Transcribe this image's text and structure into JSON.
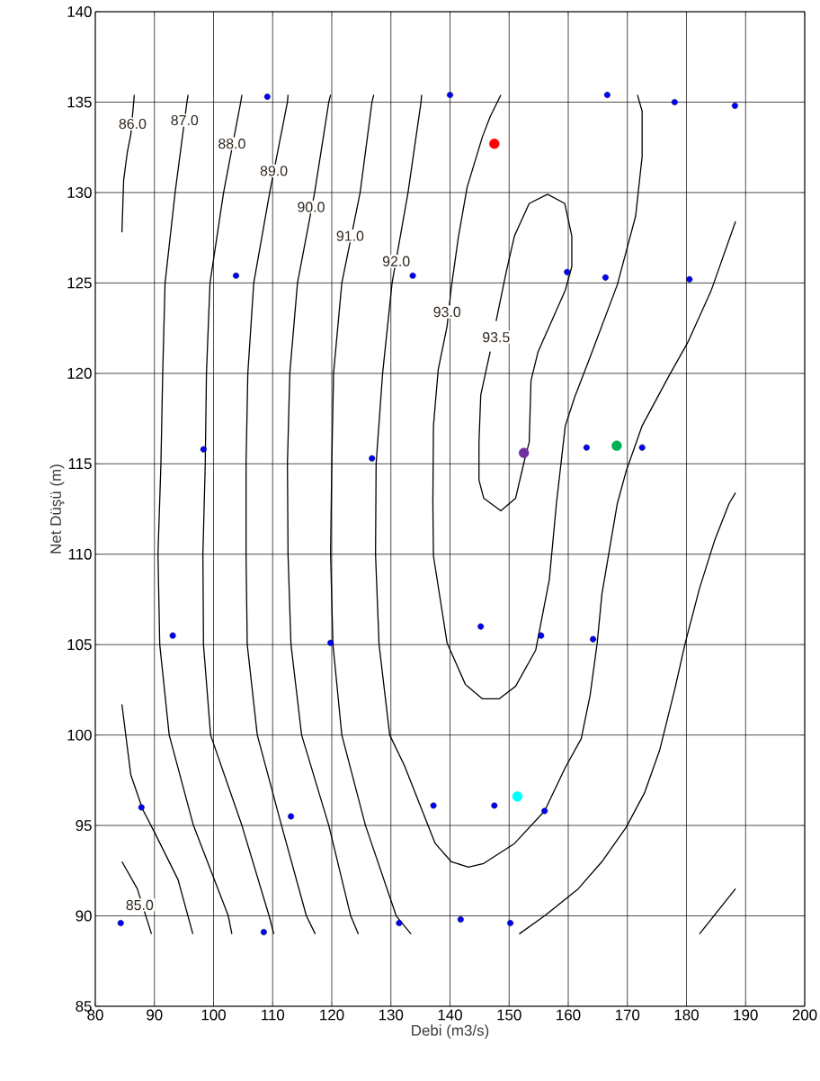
{
  "chart_data": {
    "type": "line",
    "xlabel": "Debi (m3/s)",
    "ylabel": "Net Düşü (m)",
    "xlim": [
      80,
      200
    ],
    "ylim": [
      85,
      140
    ],
    "xticks": [
      80,
      90,
      100,
      110,
      120,
      130,
      140,
      150,
      160,
      170,
      180,
      190,
      200
    ],
    "yticks": [
      85,
      90,
      95,
      100,
      105,
      110,
      115,
      120,
      125,
      130,
      135,
      140
    ],
    "grid": true,
    "series": [
      {
        "color": "#000000",
        "x": [
          84.5,
          87.1,
          89.5
        ],
        "values": [
          93.0,
          91.5,
          89.0
        ]
      },
      {
        "color": "#000000",
        "x": [
          84.5,
          86.0,
          88.0,
          90.2,
          94.0,
          96.5
        ],
        "values": [
          101.7,
          97.8,
          95.9,
          94.5,
          92.0,
          89.0
        ]
      },
      {
        "color": "#000000",
        "x": [
          86.6,
          86.0,
          85.4,
          84.8,
          84.5
        ],
        "values": [
          135.4,
          133.2,
          132.2,
          130.7,
          127.8
        ]
      },
      {
        "color": "#000000",
        "x": [
          95.7,
          95.5,
          93.5,
          91.8,
          91.4,
          91.1,
          90.6,
          90.9,
          92.5,
          96.6,
          102.5,
          103.1
        ],
        "values": [
          135.4,
          135,
          130,
          125,
          120,
          115,
          110,
          105,
          100,
          95,
          90,
          89.0
        ]
      },
      {
        "color": "#000000",
        "x": [
          104.8,
          104.6,
          101.7,
          99.4,
          98.8,
          98.6,
          98.2,
          98.3,
          99.5,
          104.8,
          109.4,
          110.2
        ],
        "values": [
          135.4,
          135,
          130,
          125,
          120,
          115,
          110,
          105,
          100,
          95,
          90,
          89.0
        ]
      },
      {
        "color": "#000000",
        "x": [
          112.6,
          112.5,
          109.5,
          106.8,
          105.8,
          105.5,
          105.5,
          105.7,
          107.4,
          111.5,
          115.7,
          117.2
        ],
        "values": [
          135.4,
          135,
          130,
          125,
          120,
          115,
          110,
          105,
          100,
          95,
          90,
          89.0
        ]
      },
      {
        "color": "#000000",
        "x": [
          119.8,
          119.5,
          117.1,
          114.2,
          112.9,
          112.5,
          112.6,
          113.1,
          114.9,
          119.5,
          123.2,
          124.5
        ],
        "values": [
          135.4,
          135,
          130,
          125,
          120,
          115,
          110,
          105,
          100,
          95,
          90,
          89.0
        ]
      },
      {
        "color": "#000000",
        "x": [
          127.1,
          126.8,
          124.8,
          121.7,
          120.3,
          120.0,
          119.8,
          120.2,
          121.7,
          125.7,
          130.9,
          133.4
        ],
        "values": [
          135.4,
          135,
          130,
          125,
          120,
          115,
          110,
          105,
          100,
          95,
          90,
          89.0
        ]
      },
      {
        "color": "#000000",
        "x": [
          135.2,
          135.1,
          132.9,
          130.2,
          128.6,
          127.5,
          127.4,
          128.0,
          129.8,
          132.3,
          137.5,
          140.2,
          143.1,
          145.7,
          150.9,
          156.0,
          159.5,
          162.2,
          163.7,
          164.9,
          165.7,
          168.3,
          169.8,
          172.5,
          177.1,
          180.2,
          184.2,
          188.3
        ],
        "values": [
          135.4,
          135,
          130,
          125,
          120,
          115,
          110,
          105,
          100,
          98.3,
          94.0,
          93.0,
          92.7,
          92.9,
          94.0,
          95.8,
          98.2,
          99.8,
          102.2,
          105.1,
          107.8,
          112.8,
          114.6,
          117.1,
          119.9,
          121.7,
          124.6,
          128.4
        ]
      },
      {
        "color": "#000000",
        "x": [
          148.6,
          146.8,
          145.5,
          142.9,
          141.4,
          140.2,
          139.5,
          138.0,
          137.2,
          137.1,
          137.2,
          139.5,
          142.6,
          145.5,
          148.3,
          151.1,
          154.5,
          156.8,
          158.0,
          159.5,
          161.1,
          163.7,
          168.3,
          171.4,
          172.5,
          172.5,
          171.7
        ],
        "values": [
          135.4,
          134.2,
          133.1,
          130.3,
          127.5,
          124.7,
          122.6,
          120.2,
          117.1,
          112.8,
          109.9,
          105.1,
          102.8,
          102.0,
          102.0,
          102.7,
          104.7,
          108.6,
          112.8,
          117.1,
          118.7,
          120.9,
          124.9,
          128.7,
          132.0,
          134.5,
          135.4
        ]
      },
      {
        "color": "#000000",
        "x": [
          146.8,
          145.2,
          144.9,
          144.9,
          145.7,
          148.6,
          151.1,
          152.6,
          153.4,
          153.7,
          154.9,
          159.5,
          160.6,
          160.6,
          159.4,
          156.5,
          153.4,
          150.9,
          149.5,
          147.8
        ],
        "values": [
          121.2,
          118.8,
          116.2,
          114.1,
          113.1,
          112.4,
          113.1,
          115.2,
          116.2,
          119.6,
          121.2,
          124.6,
          125.9,
          127.6,
          129.4,
          129.9,
          129.4,
          127.6,
          125.6,
          122.9
        ]
      },
      {
        "color": "#000000",
        "x": [
          151.7,
          156.0,
          161.7,
          165.7,
          169.8,
          172.9,
          175.5,
          178.0,
          179.8,
          182.2,
          184.8,
          187.2,
          188.3
        ],
        "values": [
          89.0,
          90.0,
          91.5,
          93.0,
          94.9,
          96.8,
          99.2,
          102.5,
          105.1,
          108.1,
          110.8,
          112.8,
          113.4
        ]
      },
      {
        "color": "#000000",
        "x": [
          182.2,
          188.3
        ],
        "values": [
          89.0,
          91.5
        ]
      },
      {
        "type": "scatter",
        "marker": "circle",
        "color": "#0000ff",
        "x": [
          109.1,
          140.0,
          166.6,
          178.0,
          188.2,
          103.8,
          133.7,
          159.8,
          166.3,
          180.5,
          98.3,
          126.8,
          163.1,
          172.5,
          93.1,
          119.8,
          145.2,
          155.4,
          164.2,
          87.8,
          113.1,
          137.2,
          147.5,
          156.0,
          84.3,
          108.5,
          131.4,
          141.8,
          150.2
        ],
        "values": [
          135.3,
          135.4,
          135.4,
          135.0,
          134.8,
          125.4,
          125.4,
          125.6,
          125.3,
          125.2,
          115.8,
          115.3,
          115.9,
          115.9,
          105.5,
          105.1,
          106.0,
          105.5,
          105.3,
          96.0,
          95.5,
          96.1,
          96.1,
          95.8,
          89.6,
          89.1,
          89.6,
          89.8,
          89.6
        ]
      },
      {
        "type": "scatter",
        "marker": "circle",
        "colors": [
          "#ff0000",
          "#7030a0",
          "#00b050",
          "#00ffff"
        ],
        "x": [
          147.5,
          152.5,
          168.2,
          151.4
        ],
        "values": [
          132.7,
          115.6,
          116.0,
          96.6
        ]
      }
    ],
    "annotations": [
      {
        "text": "86.0",
        "x": 86.3,
        "y": 133.8
      },
      {
        "text": "87.0",
        "x": 95.1,
        "y": 134.0
      },
      {
        "text": "88.0",
        "x": 103.1,
        "y": 132.7
      },
      {
        "text": "89.0",
        "x": 110.2,
        "y": 131.2
      },
      {
        "text": "90.0",
        "x": 116.5,
        "y": 129.2
      },
      {
        "text": "91.0",
        "x": 123.1,
        "y": 127.6
      },
      {
        "text": "92.0",
        "x": 130.9,
        "y": 126.2
      },
      {
        "text": "93.0",
        "x": 139.5,
        "y": 123.4
      },
      {
        "text": "93.5",
        "x": 147.8,
        "y": 122.0
      },
      {
        "text": "85.0",
        "x": 87.5,
        "y": 90.6
      }
    ]
  }
}
